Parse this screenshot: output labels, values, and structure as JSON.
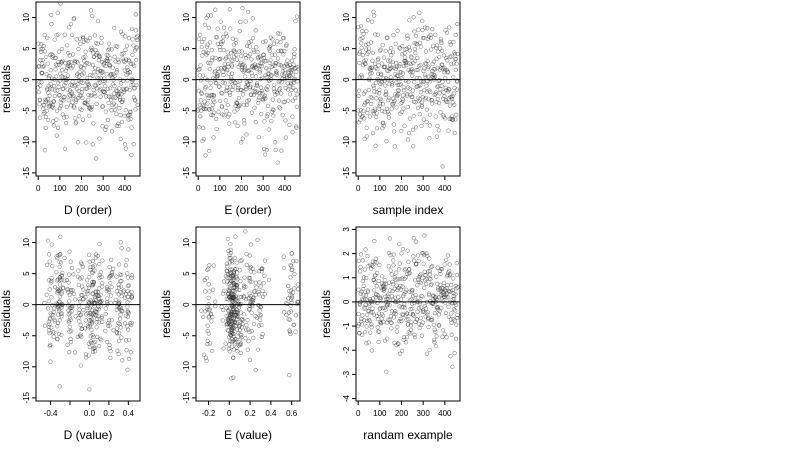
{
  "chart_data": [
    {
      "type": "scatter",
      "xlabel": "D (order)",
      "ylabel": "residuals",
      "xticks": [
        0,
        100,
        200,
        300,
        400
      ],
      "yticks": [
        -15,
        -10,
        -5,
        0,
        5,
        10
      ],
      "xlim": [
        -10,
        470
      ],
      "ylim": [
        -15.5,
        12.5
      ],
      "hline": 0,
      "points": {
        "generator": "index",
        "n": 460,
        "spread": 5,
        "seed": 11
      }
    },
    {
      "type": "scatter",
      "xlabel": "E (order)",
      "ylabel": "residuals",
      "xticks": [
        0,
        100,
        200,
        300,
        400
      ],
      "yticks": [
        -15,
        -10,
        -5,
        0,
        5,
        10
      ],
      "xlim": [
        -10,
        470
      ],
      "ylim": [
        -15.5,
        12.5
      ],
      "hline": 0,
      "points": {
        "generator": "index",
        "n": 460,
        "spread": 5,
        "seed": 23
      }
    },
    {
      "type": "scatter",
      "xlabel": "sample index",
      "ylabel": "residuals",
      "xticks": [
        0,
        100,
        200,
        300,
        400
      ],
      "yticks": [
        -15,
        -10,
        -5,
        0,
        5,
        10
      ],
      "xlim": [
        -10,
        470
      ],
      "ylim": [
        -15.5,
        12.5
      ],
      "hline": 0,
      "points": {
        "generator": "index",
        "n": 460,
        "spread": 5,
        "seed": 37
      }
    },
    {
      "type": "scatter",
      "xlabel": "D (value)",
      "ylabel": "residuals",
      "xticks": [
        -0.4,
        -0.2,
        0.0,
        0.2,
        0.4
      ],
      "xtick_labels": [
        "-0.4",
        "",
        "0.0",
        "0.2",
        "0.4"
      ],
      "yticks": [
        -15,
        -10,
        -5,
        0,
        5,
        10
      ],
      "xlim": [
        -0.55,
        0.52
      ],
      "ylim": [
        -15.5,
        12.5
      ],
      "hline": 0,
      "points": {
        "generator": "clustered",
        "n": 420,
        "spread": 5,
        "seed": 41,
        "centers": [
          -0.4,
          -0.3,
          -0.2,
          -0.1,
          0.0,
          0.05,
          0.1,
          0.2,
          0.3,
          0.4
        ],
        "jitter": 0.025
      }
    },
    {
      "type": "scatter",
      "xlabel": "E (value)",
      "ylabel": "residuals",
      "xticks": [
        -0.2,
        0.0,
        0.2,
        0.4,
        0.6
      ],
      "yticks": [
        -15,
        -10,
        -5,
        0,
        5,
        10
      ],
      "xlim": [
        -0.32,
        0.68
      ],
      "ylim": [
        -15.5,
        12.5
      ],
      "hline": 0,
      "points": {
        "generator": "clustered",
        "n": 420,
        "spread": 5,
        "seed": 53,
        "centers": [
          -0.2,
          0.0,
          0.02,
          0.04,
          0.05,
          0.1,
          0.2,
          0.3,
          0.6
        ],
        "jitter": 0.03
      }
    },
    {
      "type": "scatter",
      "xlabel": "randam example",
      "ylabel": "residuals",
      "xticks": [
        0,
        100,
        200,
        300,
        400
      ],
      "yticks": [
        -4,
        -3,
        -2,
        -1,
        0,
        1,
        2,
        3
      ],
      "xlim": [
        -10,
        470
      ],
      "ylim": [
        -4.1,
        3.1
      ],
      "hline": 0,
      "points": {
        "generator": "index",
        "n": 460,
        "spread": 1.1,
        "seed": 67
      }
    }
  ]
}
